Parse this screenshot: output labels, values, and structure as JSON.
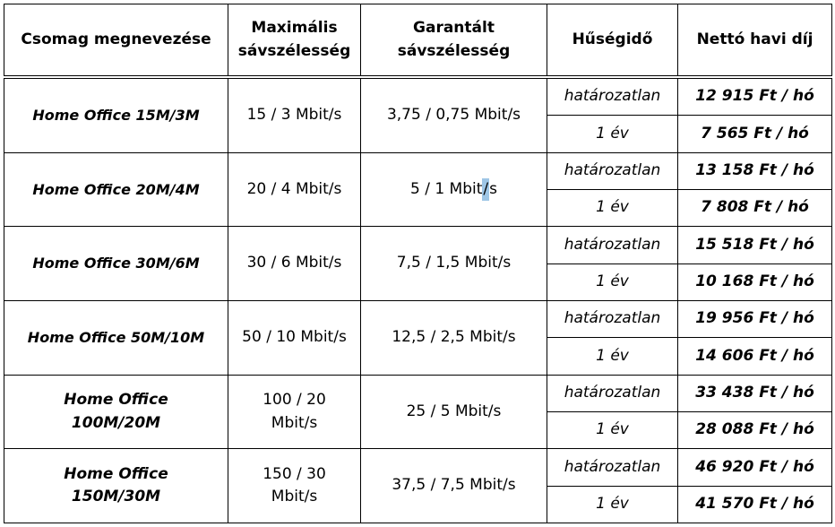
{
  "headers": {
    "name": "Csomag megnevezése",
    "max_bw": "Maximális sávszélesség",
    "guaranteed_bw": "Garantált sávszélesség",
    "loyalty": "Hűségidő",
    "price": "Nettó havi díj"
  },
  "packages": [
    {
      "name": "Home Office 15M/3M",
      "max_bw": "15 / 3 Mbit/s",
      "guaranteed_bw": "3,75 / 0,75 Mbit/s",
      "options": [
        {
          "term": "határozatlan",
          "price": "12 915 Ft / hó"
        },
        {
          "term": "1 év",
          "price": "7 565 Ft / hó"
        }
      ]
    },
    {
      "name": "Home Office 20M/4M",
      "max_bw": "20 / 4 Mbit/s",
      "guaranteed_bw_pre": "5 / 1 Mbit",
      "guaranteed_bw_sel": "/",
      "guaranteed_bw_post": "s",
      "options": [
        {
          "term": "határozatlan",
          "price": "13 158 Ft / hó"
        },
        {
          "term": "1 év",
          "price": "7 808 Ft / hó"
        }
      ]
    },
    {
      "name": "Home Office 30M/6M",
      "max_bw": "30 / 6 Mbit/s",
      "guaranteed_bw": "7,5 / 1,5 Mbit/s",
      "options": [
        {
          "term": "határozatlan",
          "price": "15 518 Ft / hó"
        },
        {
          "term": "1 év",
          "price": "10 168 Ft / hó"
        }
      ]
    },
    {
      "name": "Home Office 50M/10M",
      "max_bw": "50 / 10 Mbit/s",
      "guaranteed_bw": "12,5 / 2,5 Mbit/s",
      "options": [
        {
          "term": "határozatlan",
          "price": "19 956 Ft / hó"
        },
        {
          "term": "1 év",
          "price": "14 606 Ft / hó"
        }
      ]
    },
    {
      "name": "Home Office 100M/20M",
      "max_bw": "100 / 20 Mbit/s",
      "guaranteed_bw": "25 / 5 Mbit/s",
      "options": [
        {
          "term": "határozatlan",
          "price": "33 438 Ft / hó"
        },
        {
          "term": "1 év",
          "price": "28 088 Ft / hó"
        }
      ]
    },
    {
      "name": "Home Office 150M/30M",
      "max_bw": "150 / 30 Mbit/s",
      "guaranteed_bw": "37,5 / 7,5 Mbit/s",
      "options": [
        {
          "term": "határozatlan",
          "price": "46 920 Ft / hó"
        },
        {
          "term": "1 év",
          "price": "41 570 Ft / hó"
        }
      ]
    }
  ]
}
